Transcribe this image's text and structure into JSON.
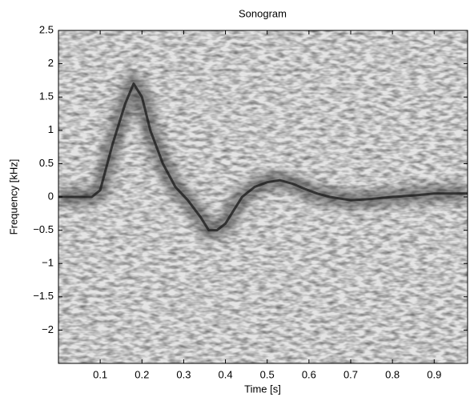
{
  "chart_data": {
    "type": "line",
    "title": "Sonogram",
    "xlabel": "Time [s]",
    "ylabel": "Frequency [kHz]",
    "x": [
      0,
      0.08,
      0.1,
      0.13,
      0.16,
      0.18,
      0.2,
      0.22,
      0.25,
      0.28,
      0.31,
      0.34,
      0.36,
      0.38,
      0.4,
      0.42,
      0.44,
      0.47,
      0.5,
      0.53,
      0.56,
      0.59,
      0.62,
      0.65,
      0.7,
      0.75,
      0.8,
      0.85,
      0.9,
      0.95,
      0.98
    ],
    "values": [
      0,
      0,
      0.1,
      0.8,
      1.4,
      1.7,
      1.5,
      1.0,
      0.5,
      0.15,
      -0.05,
      -0.3,
      -0.5,
      -0.5,
      -0.4,
      -0.2,
      0,
      0.15,
      0.22,
      0.25,
      0.2,
      0.12,
      0.05,
      0,
      -0.05,
      -0.03,
      0,
      0.02,
      0.05,
      0.05,
      0.05
    ],
    "color": "#1e1e1e",
    "xlim": [
      0,
      0.98
    ],
    "ylim": [
      -2.5,
      2.5
    ],
    "xticks": [
      0.1,
      0.2,
      0.3,
      0.4,
      0.5,
      0.6,
      0.7,
      0.8,
      0.9
    ],
    "yticks": [
      2.5,
      2,
      1.5,
      1,
      0.5,
      0,
      {
        "value": -0.5,
        "label": "−0.5"
      },
      {
        "value": -1,
        "label": "−1"
      },
      {
        "value": -1.5,
        "label": "−1.5"
      },
      {
        "value": -2,
        "label": "−2"
      }
    ]
  }
}
